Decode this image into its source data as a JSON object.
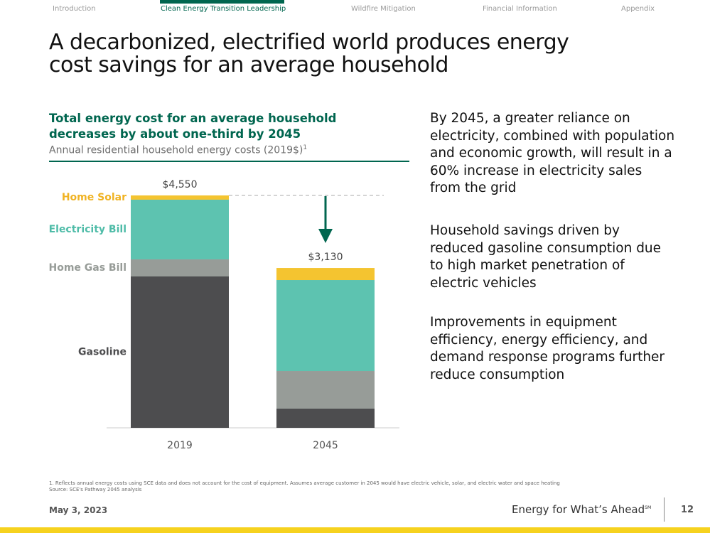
{
  "nav": {
    "tabs": [
      "Introduction",
      "Clean Energy Transition Leadership",
      "Wildfire Mitigation",
      "Financial Information",
      "Appendix"
    ],
    "active": 1
  },
  "title": "A decarbonized, electrified world produces energy cost savings for an average household",
  "chart_data": {
    "type": "stacked_bar",
    "title": "Total energy cost for an average household decreases by about one-third by 2045",
    "subtitle": "Annual residential household energy costs (2019$)",
    "subtitle_note": "1",
    "categories": [
      "2019",
      "2045"
    ],
    "series": [
      {
        "name": "Gasoline",
        "color": "#4d4d4f",
        "label_color": "#4d4d4f",
        "values": [
          2964,
          376
        ]
      },
      {
        "name": "Home Gas Bill",
        "color": "#979c98",
        "label_color": "#979c98",
        "values": [
          334,
          737
        ]
      },
      {
        "name": "Electricity Bill",
        "color": "#5dc3b0",
        "label_color": "#4fbca8",
        "values": [
          1169,
          1781
        ]
      },
      {
        "name": "Home Solar",
        "color": "#f4c430",
        "label_color": "#f0b323",
        "values": [
          83,
          236
        ]
      }
    ],
    "totals": [
      4550,
      3130
    ],
    "total_labels": [
      "$4,550",
      "$3,130"
    ],
    "ylim": [
      0,
      4550
    ]
  },
  "paragraphs": [
    "By 2045, a greater reliance on electricity, combined with population and economic growth, will result in a 60% increase in electricity sales from the grid",
    "Household savings driven by reduced gasoline consumption due to high market penetration of electric vehicles",
    "Improvements in equipment efficiency, energy efficiency, and demand response programs further reduce consumption"
  ],
  "footnotes": [
    "1.  Reflects annual energy costs using SCE data and does not account for the cost of equipment. Assumes average customer in 2045 would have electric vehicle, solar, and electric water and space heating",
    "Source: SCE's Pathway 2045 analysis"
  ],
  "footer": {
    "date": "May 3, 2023",
    "tagline": "Energy for What’s Ahead",
    "tagline_mark": "SM",
    "page": "12"
  }
}
